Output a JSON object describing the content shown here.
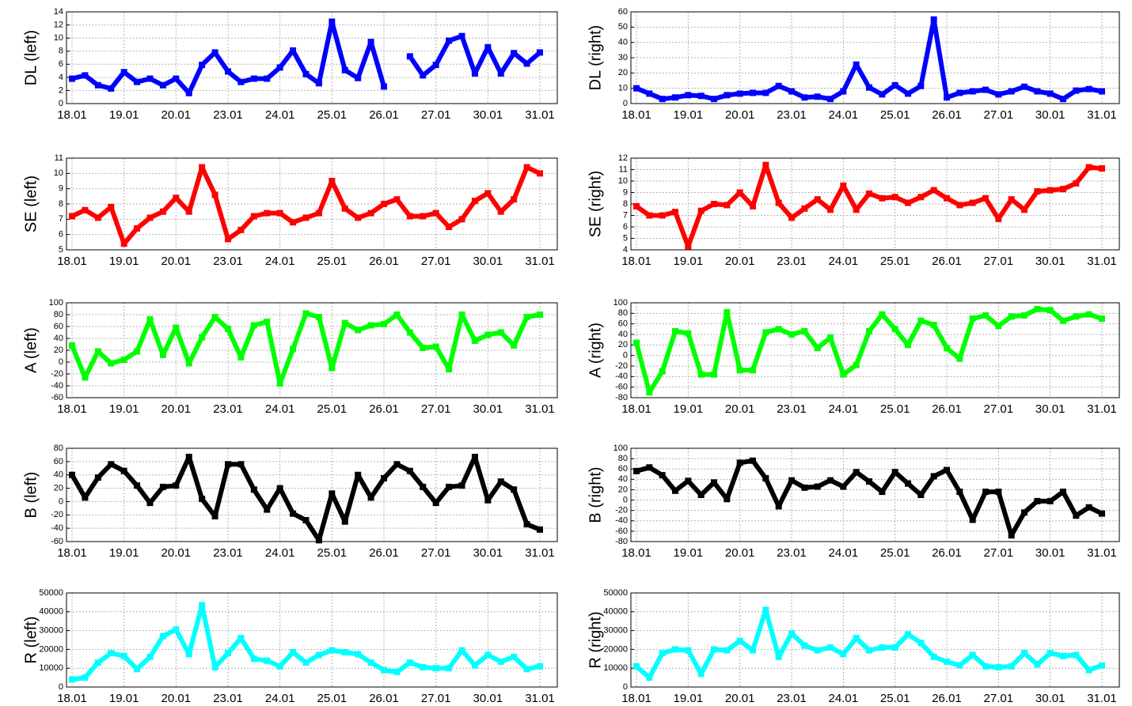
{
  "chart_data": [
    {
      "type": "line",
      "y_label": "DL (left)",
      "color": "#0000ff",
      "grid": true,
      "categories": [
        "18.01",
        null,
        null,
        null,
        "19.01",
        null,
        null,
        null,
        "20.01",
        null,
        null,
        null,
        "23.01",
        null,
        null,
        null,
        "24.01",
        null,
        null,
        null,
        "25.01",
        null,
        null,
        null,
        "26.01",
        null,
        null,
        null,
        "27.01",
        null,
        null,
        null,
        "30.01",
        null,
        null,
        null,
        "31.01"
      ],
      "values": [
        3.8,
        4.3,
        2.8,
        2.3,
        4.8,
        3.3,
        3.8,
        2.8,
        3.8,
        1.6,
        5.9,
        7.8,
        4.9,
        3.3,
        3.8,
        3.8,
        5.5,
        8.1,
        4.5,
        3.1,
        12.5,
        5.1,
        3.9,
        9.4,
        2.6,
        null,
        7.2,
        4.3,
        5.9,
        9.6,
        10.3,
        4.6,
        8.6,
        4.6,
        7.7,
        6.1,
        7.8
      ],
      "ylim": [
        0,
        14
      ],
      "yticks": [
        0,
        2,
        4,
        6,
        8,
        10,
        12,
        14
      ]
    },
    {
      "type": "line",
      "y_label": "DL  (right)",
      "color": "#0000ff",
      "grid": true,
      "categories": [
        "18.01",
        null,
        null,
        null,
        "19.01",
        null,
        null,
        null,
        "20.01",
        null,
        null,
        null,
        "23.01",
        null,
        null,
        null,
        "24.01",
        null,
        null,
        null,
        "25.01",
        null,
        null,
        null,
        "26.01",
        null,
        null,
        null,
        "27.01",
        null,
        null,
        null,
        "30.01",
        null,
        null,
        null,
        "31.01"
      ],
      "values": [
        10,
        6.5,
        3,
        4,
        5.5,
        5,
        3,
        5.5,
        6.5,
        7,
        7,
        11.5,
        8,
        4,
        4.5,
        3,
        8,
        25.5,
        10.5,
        6,
        12,
        6.5,
        11.5,
        55,
        4,
        7,
        8,
        9,
        6,
        8,
        11,
        8,
        6.5,
        3,
        8.5,
        9.5,
        8
      ],
      "ylim": [
        0,
        60
      ],
      "yticks": [
        0,
        10,
        20,
        30,
        40,
        50,
        60
      ]
    },
    {
      "type": "line",
      "y_label": "SE (left)",
      "color": "#ff0000",
      "grid": true,
      "categories": [
        "18.01",
        null,
        null,
        null,
        "19.01",
        null,
        null,
        null,
        "20.01",
        null,
        null,
        null,
        "23.01",
        null,
        null,
        null,
        "24.01",
        null,
        null,
        null,
        "25.01",
        null,
        null,
        null,
        "26.01",
        null,
        null,
        null,
        "27.01",
        null,
        null,
        null,
        "30.01",
        null,
        null,
        null,
        "31.01"
      ],
      "values": [
        7.2,
        7.6,
        7.1,
        7.8,
        5.4,
        6.4,
        7.1,
        7.5,
        8.4,
        7.5,
        10.4,
        8.6,
        5.7,
        6.3,
        7.2,
        7.4,
        7.4,
        6.8,
        7.1,
        7.4,
        9.5,
        7.7,
        7.1,
        7.4,
        8.0,
        8.3,
        7.2,
        7.2,
        7.4,
        6.5,
        7.0,
        8.2,
        8.7,
        7.5,
        8.3,
        10.4,
        10.0
      ],
      "ylim": [
        5,
        11
      ],
      "yticks": [
        5,
        6,
        7,
        8,
        9,
        10,
        11
      ]
    },
    {
      "type": "line",
      "y_label": "SE  (right)",
      "color": "#ff0000",
      "grid": true,
      "categories": [
        "18.01",
        null,
        null,
        null,
        "19.01",
        null,
        null,
        null,
        "20.01",
        null,
        null,
        null,
        "23.01",
        null,
        null,
        null,
        "24.01",
        null,
        null,
        null,
        "25.01",
        null,
        null,
        null,
        "26.01",
        null,
        null,
        null,
        "27.01",
        null,
        null,
        null,
        "30.01",
        null,
        null,
        null,
        "31.01"
      ],
      "values": [
        7.8,
        7.0,
        7.0,
        7.3,
        4.3,
        7.4,
        8.0,
        7.9,
        9.0,
        7.8,
        11.4,
        8.1,
        6.8,
        7.6,
        8.4,
        7.5,
        9.6,
        7.5,
        8.9,
        8.5,
        8.6,
        8.1,
        8.6,
        9.2,
        8.5,
        7.9,
        8.1,
        8.5,
        6.7,
        8.4,
        7.5,
        9.1,
        9.2,
        9.3,
        9.8,
        11.2,
        11.1
      ],
      "ylim": [
        4,
        12
      ],
      "yticks": [
        4,
        5,
        6,
        7,
        8,
        9,
        10,
        11,
        12
      ]
    },
    {
      "type": "line",
      "y_label": "A (left)",
      "color": "#00ff00",
      "grid": true,
      "categories": [
        "18.01",
        null,
        null,
        null,
        "19.01",
        null,
        null,
        null,
        "20.01",
        null,
        null,
        null,
        "23.01",
        null,
        null,
        null,
        "24.01",
        null,
        null,
        null,
        "25.01",
        null,
        null,
        null,
        "26.01",
        null,
        null,
        null,
        "27.01",
        null,
        null,
        null,
        "30.01",
        null,
        null,
        null,
        "31.01"
      ],
      "values": [
        28,
        -26,
        18,
        -2,
        4,
        18,
        72,
        12,
        58,
        -2,
        42,
        76,
        56,
        8,
        62,
        68,
        -36,
        22,
        82,
        76,
        -10,
        66,
        54,
        62,
        64,
        80,
        50,
        24,
        26,
        -12,
        80,
        36,
        46,
        50,
        28,
        76,
        80
      ],
      "ylim": [
        -60,
        100
      ],
      "yticks": [
        -60,
        -40,
        -20,
        0,
        20,
        40,
        60,
        80,
        100
      ]
    },
    {
      "type": "line",
      "y_label": "A (right)",
      "color": "#00ff00",
      "grid": true,
      "categories": [
        "18.01",
        null,
        null,
        null,
        "19.01",
        null,
        null,
        null,
        "20.01",
        null,
        null,
        null,
        "23.01",
        null,
        null,
        null,
        "24.01",
        null,
        null,
        null,
        "25.01",
        null,
        null,
        null,
        "26.01",
        null,
        null,
        null,
        "27.01",
        null,
        null,
        null,
        "30.01",
        null,
        null,
        null,
        "31.01"
      ],
      "values": [
        24,
        -70,
        -30,
        46,
        42,
        -36,
        -36,
        82,
        -28,
        -28,
        44,
        50,
        40,
        46,
        14,
        34,
        -36,
        -18,
        46,
        78,
        50,
        20,
        66,
        58,
        14,
        -6,
        70,
        76,
        56,
        74,
        76,
        88,
        86,
        66,
        74,
        78,
        70
      ],
      "ylim": [
        -80,
        100
      ],
      "yticks": [
        -80,
        -60,
        -40,
        -20,
        0,
        20,
        40,
        60,
        80,
        100
      ]
    },
    {
      "type": "line",
      "y_label": "B (left)",
      "color": "#000000",
      "grid": true,
      "categories": [
        "18.01",
        null,
        null,
        null,
        "19.01",
        null,
        null,
        null,
        "20.01",
        null,
        null,
        null,
        "23.01",
        null,
        null,
        null,
        "24.01",
        null,
        null,
        null,
        "25.01",
        null,
        null,
        null,
        "26.01",
        null,
        null,
        null,
        "27.01",
        null,
        null,
        null,
        "30.01",
        null,
        null,
        null,
        "31.01"
      ],
      "values": [
        40,
        6,
        36,
        56,
        46,
        24,
        -2,
        22,
        24,
        67,
        4,
        -22,
        56,
        56,
        18,
        -12,
        20,
        -18,
        -28,
        -58,
        12,
        -30,
        40,
        6,
        35,
        56,
        46,
        22,
        -2,
        22,
        24,
        67,
        2,
        30,
        18,
        -34,
        -42
      ],
      "ylim": [
        -60,
        80
      ],
      "yticks": [
        -60,
        -40,
        -20,
        0,
        20,
        40,
        60,
        80
      ]
    },
    {
      "type": "line",
      "y_label": "B (right)",
      "color": "#000000",
      "grid": true,
      "categories": [
        "18.01",
        null,
        null,
        null,
        "19.01",
        null,
        null,
        null,
        "20.01",
        null,
        null,
        null,
        "23.01",
        null,
        null,
        null,
        "24.01",
        null,
        null,
        null,
        "25.01",
        null,
        null,
        null,
        "26.01",
        null,
        null,
        null,
        "27.01",
        null,
        null,
        null,
        "30.01",
        null,
        null,
        null,
        "31.01"
      ],
      "values": [
        56,
        63,
        48,
        18,
        37,
        10,
        34,
        2,
        72,
        76,
        42,
        -12,
        38,
        24,
        26,
        38,
        26,
        54,
        36,
        16,
        54,
        32,
        10,
        46,
        58,
        16,
        -38,
        16,
        16,
        -68,
        -24,
        -2,
        -2,
        16,
        -30,
        -14,
        -26
      ],
      "ylim": [
        -80,
        100
      ],
      "yticks": [
        -80,
        -60,
        -40,
        -20,
        0,
        20,
        40,
        60,
        80,
        100
      ]
    },
    {
      "type": "line",
      "y_label": "R (left)",
      "color": "#00ffff",
      "grid": true,
      "categories": [
        "18.01",
        null,
        null,
        null,
        "19.01",
        null,
        null,
        null,
        "20.01",
        null,
        null,
        null,
        "23.01",
        null,
        null,
        null,
        "24.01",
        null,
        null,
        null,
        "25.01",
        null,
        null,
        null,
        "26.01",
        null,
        null,
        null,
        "27.01",
        null,
        null,
        null,
        "30.01",
        null,
        null,
        null,
        "31.01"
      ],
      "values": [
        4000,
        5000,
        13000,
        18000,
        16500,
        9500,
        16000,
        27000,
        30500,
        17500,
        43500,
        10500,
        18000,
        26000,
        15000,
        14000,
        11000,
        18500,
        13000,
        17000,
        19500,
        18500,
        17500,
        13000,
        9000,
        8000,
        13000,
        10500,
        10000,
        10000,
        19500,
        11500,
        17000,
        13500,
        16000,
        9500,
        11000
      ],
      "ylim": [
        0,
        50000
      ],
      "yticks": [
        0,
        10000,
        20000,
        30000,
        40000,
        50000
      ]
    },
    {
      "type": "line",
      "y_label": "R (right)",
      "color": "#00ffff",
      "grid": true,
      "categories": [
        "18.01",
        null,
        null,
        null,
        "19.01",
        null,
        null,
        null,
        "20.01",
        null,
        null,
        null,
        "23.01",
        null,
        null,
        null,
        "24.01",
        null,
        null,
        null,
        "25.01",
        null,
        null,
        null,
        "26.01",
        null,
        null,
        null,
        "27.01",
        null,
        null,
        null,
        "30.01",
        null,
        null,
        null,
        "31.01"
      ],
      "values": [
        11000,
        5000,
        18000,
        20000,
        19500,
        7000,
        20000,
        19500,
        24500,
        19500,
        41000,
        16000,
        28500,
        22000,
        19500,
        21000,
        17500,
        26000,
        19500,
        21000,
        21000,
        28000,
        23500,
        16000,
        13500,
        11500,
        17000,
        11000,
        10500,
        11000,
        18000,
        12000,
        18000,
        16500,
        17000,
        9000,
        11500
      ],
      "ylim": [
        0,
        50000
      ],
      "yticks": [
        0,
        10000,
        20000,
        30000,
        40000,
        50000
      ]
    }
  ]
}
